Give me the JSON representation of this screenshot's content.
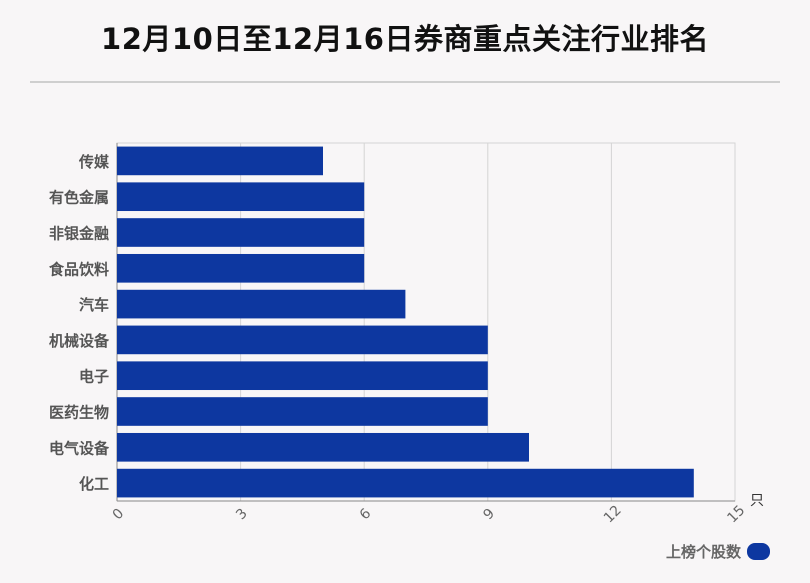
{
  "title": "12月10日至12月16日券商重点关注行业排名",
  "unit_label": "只",
  "legend": {
    "label": "上榜个股数"
  },
  "colors": {
    "bar": "#0d37a0",
    "background": "#f8f6f7",
    "grid": "#d4d4d4"
  },
  "chart_data": {
    "type": "bar",
    "orientation": "horizontal",
    "title": "12月10日至12月16日券商重点关注行业排名",
    "categories": [
      "传媒",
      "有色金属",
      "非银金融",
      "食品饮料",
      "汽车",
      "机械设备",
      "电子",
      "医药生物",
      "电气设备",
      "化工"
    ],
    "series": [
      {
        "name": "上榜个股数",
        "values": [
          5,
          6,
          6,
          6,
          7,
          9,
          9,
          9,
          10,
          14
        ]
      }
    ],
    "xlim": [
      0,
      15
    ],
    "ticks": [
      "0",
      "3",
      "6",
      "9",
      "12",
      "15"
    ],
    "grid": true,
    "legend": "bottom-right"
  }
}
